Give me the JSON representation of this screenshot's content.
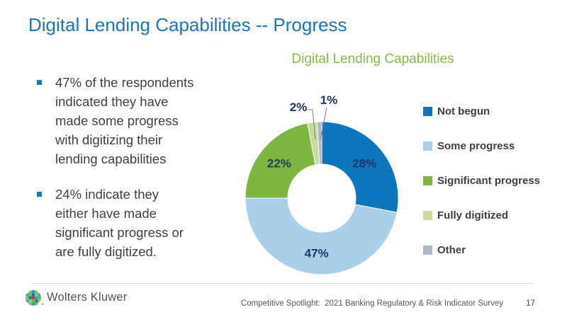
{
  "slide": {
    "title": "Digital Lending Capabilities -- Progress",
    "bullets": [
      {
        "lines": [
          "47% of the respondents",
          "indicated they have",
          "made some progress",
          "with digitizing their",
          "lending capabilities"
        ]
      },
      {
        "lines": [
          "24% indicate they",
          "either have made",
          "significant progress or",
          "are fully digitized."
        ]
      }
    ]
  },
  "chart_data": {
    "type": "pie",
    "subtype": "donut",
    "title": "Digital Lending Capabilities",
    "categories": [
      "Not begun",
      "Some progress",
      "Significant progress",
      "Fully digitized",
      "Other"
    ],
    "values": [
      28,
      47,
      22,
      2,
      1
    ],
    "labels": [
      "28%",
      "47%",
      "22%",
      "2%",
      "1%"
    ],
    "unit": "%",
    "colors": [
      "#0E76BC",
      "#A9CFE9",
      "#7DB742",
      "#C9DC9B",
      "#AFB6CE"
    ],
    "label_color": "#1F3864",
    "legend_position": "right",
    "start_angle_deg": 0,
    "direction": "clockwise",
    "donut_hole_ratio": 0.44
  },
  "footer": {
    "logo_text": "Wolters Kluwer",
    "source": "Competitive Spotlight:  2021 Banking Regulatory & Risk Indicator Survey",
    "page_number": "17"
  },
  "colors": {
    "title_blue": "#1B75BC",
    "chart_title_green": "#84BC41",
    "label_navy": "#1F3864",
    "body_text": "#404040",
    "footer_text": "#595959",
    "divider_gray": "#D9D9D9"
  }
}
